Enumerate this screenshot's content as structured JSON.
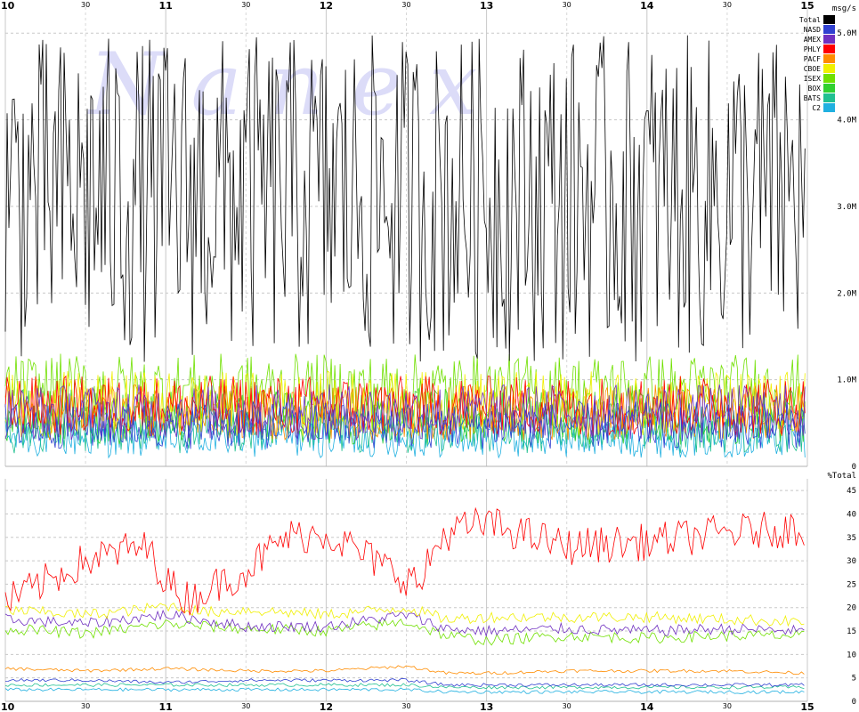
{
  "watermark": "N a n e x",
  "chart_data": [
    {
      "type": "line",
      "name": "top",
      "ylabel": "msg/s",
      "ylim": [
        0,
        5.3
      ],
      "yticks": [
        {
          "value": 0,
          "label": "0"
        },
        {
          "value": 1.0,
          "label": "1.0M"
        },
        {
          "value": 2.0,
          "label": "2.0M"
        },
        {
          "value": 3.0,
          "label": "3.0M"
        },
        {
          "value": 4.0,
          "label": "4.0M"
        },
        {
          "value": 5.0,
          "label": "5.0M"
        }
      ],
      "x_hour_labels": [
        "10",
        "11",
        "12",
        "13",
        "14",
        "15"
      ],
      "x_minute_label": "30",
      "xlim": [
        10.0,
        15.0
      ],
      "series": [
        {
          "name": "Total",
          "color": "#000000",
          "approx_mean": 3.4,
          "approx_low": 1.2,
          "approx_high": 5.1
        },
        {
          "name": "NASD",
          "color": "#3040d0",
          "approx_mean": 0.45,
          "approx_low": 0.2,
          "approx_high": 0.75
        },
        {
          "name": "AMEX",
          "color": "#7030c0",
          "approx_mean": 0.6,
          "approx_low": 0.3,
          "approx_high": 0.95
        },
        {
          "name": "PHLY",
          "color": "#ff0000",
          "approx_mean": 0.7,
          "approx_low": 0.35,
          "approx_high": 1.05
        },
        {
          "name": "PACF",
          "color": "#ff8c00",
          "approx_mean": 0.65,
          "approx_low": 0.3,
          "approx_high": 0.95
        },
        {
          "name": "CBOE",
          "color": "#f0f000",
          "approx_mean": 0.75,
          "approx_low": 0.35,
          "approx_high": 1.1
        },
        {
          "name": "ISEX",
          "color": "#70e000",
          "approx_mean": 0.85,
          "approx_low": 0.45,
          "approx_high": 1.3
        },
        {
          "name": "BOX",
          "color": "#30d030",
          "approx_mean": 0.55,
          "approx_low": 0.25,
          "approx_high": 0.9
        },
        {
          "name": "BATS",
          "color": "#20c090",
          "approx_mean": 0.4,
          "approx_low": 0.15,
          "approx_high": 0.7
        },
        {
          "name": "C2",
          "color": "#20b0e0",
          "approx_mean": 0.3,
          "approx_low": 0.1,
          "approx_high": 0.55
        }
      ]
    },
    {
      "type": "line",
      "name": "bottom",
      "ylabel": "%Total",
      "ylim": [
        0,
        47.5
      ],
      "yticks": [
        {
          "value": 0,
          "label": "0"
        },
        {
          "value": 5,
          "label": "5"
        },
        {
          "value": 10,
          "label": "10"
        },
        {
          "value": 15,
          "label": "15"
        },
        {
          "value": 20,
          "label": "20"
        },
        {
          "value": 25,
          "label": "25"
        },
        {
          "value": 30,
          "label": "30"
        },
        {
          "value": 35,
          "label": "35"
        },
        {
          "value": 40,
          "label": "40"
        },
        {
          "value": 45,
          "label": "45"
        }
      ],
      "x_hour_labels": [
        "10",
        "11",
        "12",
        "13",
        "14",
        "15"
      ],
      "x_minute_label": "30",
      "xlim": [
        10.0,
        15.0
      ],
      "series": [
        {
          "name": "PHLY",
          "color": "#ff0000",
          "segments": [
            {
              "x": [
                10.0,
                10.5,
                10.83,
                10.9,
                11.0,
                11.08,
                11.15,
                11.5,
                11.75,
                12.0,
                12.4,
                12.6,
                12.65,
                12.75,
                13.0,
                13.5,
                14.0,
                14.5,
                14.98
              ],
              "y": [
                21,
                30,
                33,
                32,
                26,
                23,
                22,
                28,
                35,
                36,
                28,
                25,
                31,
                36,
                38,
                33,
                34,
                36,
                37
              ]
            }
          ]
        },
        {
          "name": "CBOE",
          "color": "#f0f000",
          "segments": [
            {
              "x": [
                10.0,
                10.5,
                10.83,
                11.0,
                11.25,
                11.5,
                12.0,
                12.5,
                12.75,
                13.0,
                13.5,
                14.0,
                14.5,
                14.98
              ],
              "y": [
                19.5,
                18.5,
                19.5,
                20.5,
                19,
                19.5,
                18.5,
                20,
                17.5,
                18,
                18,
                18,
                17.5,
                17
              ]
            }
          ]
        },
        {
          "name": "AMEX",
          "color": "#7030c0",
          "segments": [
            {
              "x": [
                10.0,
                10.5,
                11.0,
                11.5,
                12.0,
                12.5,
                12.75,
                13.0,
                13.5,
                14.0,
                14.5,
                14.98
              ],
              "y": [
                17.5,
                16.5,
                18.5,
                16,
                16,
                18.5,
                15.5,
                15,
                15.5,
                15,
                15.5,
                15
              ]
            }
          ]
        },
        {
          "name": "ISEX",
          "color": "#70e000",
          "segments": [
            {
              "x": [
                10.0,
                10.5,
                11.0,
                11.5,
                12.0,
                12.5,
                12.75,
                13.0,
                13.5,
                14.0,
                14.5,
                14.98
              ],
              "y": [
                15.5,
                14.5,
                16.5,
                15.5,
                15,
                17,
                14,
                13,
                14,
                13.5,
                14,
                14
              ]
            }
          ]
        },
        {
          "name": "PACF",
          "color": "#ff8c00",
          "segments": [
            {
              "x": [
                10.0,
                10.5,
                11.0,
                11.5,
                12.0,
                12.5,
                12.75,
                13.0,
                13.5,
                14.0,
                14.5,
                14.98
              ],
              "y": [
                7,
                6.5,
                7,
                6.5,
                6.5,
                7.5,
                6,
                6,
                6.5,
                6.5,
                6.5,
                6
              ]
            }
          ]
        },
        {
          "name": "NASD",
          "color": "#3040d0",
          "segments": [
            {
              "x": [
                10.0,
                10.5,
                11.0,
                11.5,
                12.0,
                12.5,
                12.75,
                13.0,
                13.5,
                14.0,
                14.5,
                14.98
              ],
              "y": [
                4.5,
                4.5,
                4,
                4.5,
                4.5,
                4.5,
                3.5,
                3.5,
                3.5,
                3.5,
                3.5,
                3.5
              ]
            }
          ]
        },
        {
          "name": "BATS",
          "color": "#20c090",
          "segments": [
            {
              "x": [
                10.0,
                10.5,
                11.0,
                11.5,
                12.0,
                12.5,
                12.75,
                13.0,
                13.5,
                14.0,
                14.5,
                14.98
              ],
              "y": [
                3.5,
                3.5,
                3.5,
                3.5,
                3.5,
                3.5,
                3,
                3,
                3,
                3,
                3,
                3
              ]
            }
          ]
        },
        {
          "name": "C2",
          "color": "#20b0e0",
          "segments": [
            {
              "x": [
                10.0,
                10.5,
                11.0,
                11.5,
                12.0,
                12.5,
                12.75,
                13.0,
                13.5,
                14.0,
                14.5,
                14.98
              ],
              "y": [
                2.5,
                2.5,
                2.5,
                2.5,
                2.5,
                2.5,
                2,
                2,
                2,
                2,
                2,
                2
              ]
            }
          ]
        }
      ]
    }
  ]
}
